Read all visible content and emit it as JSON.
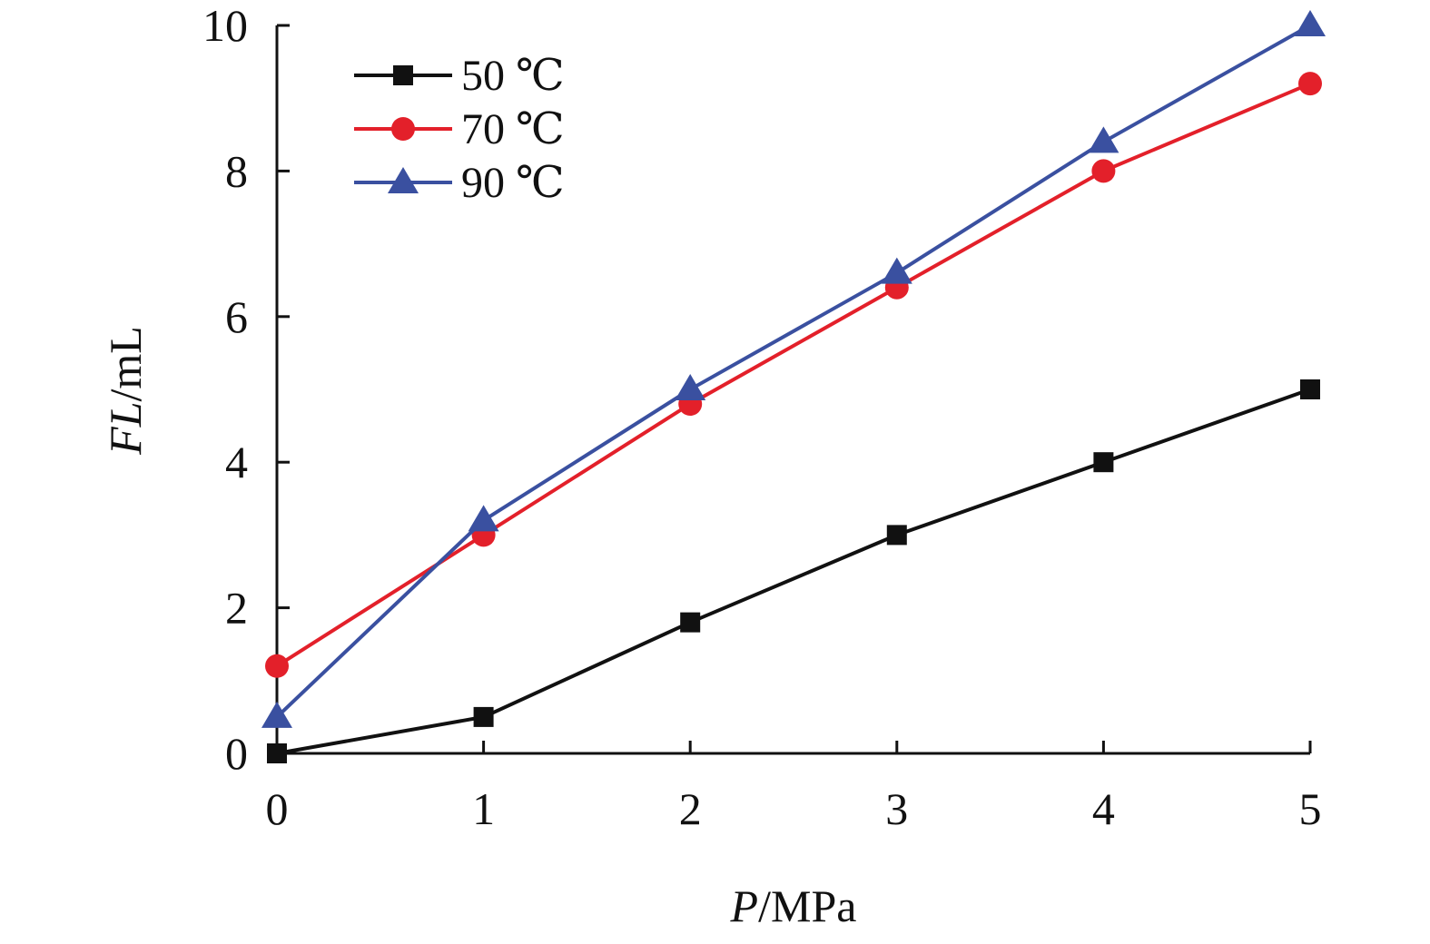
{
  "chart_data": {
    "type": "line",
    "title": "",
    "xlabel_italic": "P",
    "xlabel_unit": "/MPa",
    "ylabel_italic": "FL",
    "ylabel_unit": "/mL",
    "xlim": [
      0,
      5
    ],
    "ylim": [
      0,
      10
    ],
    "x_ticks": [
      0,
      1,
      2,
      3,
      4,
      5
    ],
    "y_ticks": [
      0,
      2,
      4,
      6,
      8,
      10
    ],
    "grid": false,
    "legend_position": "top-left",
    "x": [
      0,
      1,
      2,
      3,
      4,
      5
    ],
    "series": [
      {
        "name": "50 ℃",
        "color": "#111111",
        "marker": "square",
        "values": [
          0,
          0.5,
          1.8,
          3.0,
          4.0,
          5.0
        ]
      },
      {
        "name": "70 ℃",
        "color": "#e3202a",
        "marker": "circle",
        "values": [
          1.2,
          3.0,
          4.8,
          6.4,
          8.0,
          9.2
        ]
      },
      {
        "name": "90 ℃",
        "color": "#3a50a0",
        "marker": "triangle",
        "values": [
          0.5,
          3.2,
          5.0,
          6.6,
          8.4,
          10.0
        ]
      }
    ]
  }
}
